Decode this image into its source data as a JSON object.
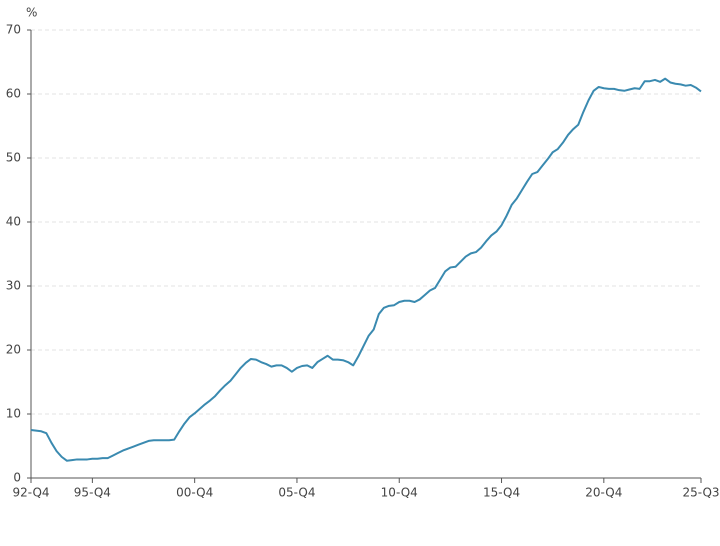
{
  "chart_data": {
    "type": "line",
    "y_label": "%",
    "categories": [
      "92-Q4",
      null,
      null,
      null,
      null,
      null,
      null,
      null,
      null,
      null,
      null,
      null,
      "95-Q4",
      null,
      null,
      null,
      null,
      null,
      null,
      null,
      null,
      null,
      null,
      null,
      null,
      null,
      null,
      null,
      null,
      null,
      null,
      null,
      "00-Q4",
      null,
      null,
      null,
      null,
      null,
      null,
      null,
      null,
      null,
      null,
      null,
      null,
      null,
      null,
      null,
      null,
      null,
      null,
      null,
      "05-Q4",
      null,
      null,
      null,
      null,
      null,
      null,
      null,
      null,
      null,
      null,
      null,
      null,
      null,
      null,
      null,
      null,
      null,
      null,
      null,
      "10-Q4",
      null,
      null,
      null,
      null,
      null,
      null,
      null,
      null,
      null,
      null,
      null,
      null,
      null,
      null,
      null,
      null,
      null,
      null,
      null,
      "15-Q4",
      null,
      null,
      null,
      null,
      null,
      null,
      null,
      null,
      null,
      null,
      null,
      null,
      null,
      null,
      null,
      null,
      null,
      null,
      null,
      "20-Q4",
      null,
      null,
      null,
      null,
      null,
      null,
      null,
      null,
      null,
      null,
      null,
      null,
      null,
      null,
      null,
      null,
      null,
      null,
      "25-Q3"
    ],
    "values": [
      7.5,
      7.4,
      7.3,
      7.0,
      5.5,
      4.2,
      3.3,
      2.7,
      2.8,
      2.9,
      2.9,
      2.9,
      3.0,
      3.0,
      3.1,
      3.1,
      3.5,
      3.9,
      4.3,
      4.6,
      4.9,
      5.2,
      5.5,
      5.8,
      5.9,
      5.9,
      5.9,
      5.9,
      6.0,
      7.3,
      8.5,
      9.5,
      10.1,
      10.8,
      11.5,
      12.1,
      12.8,
      13.7,
      14.5,
      15.2,
      16.2,
      17.2,
      18.0,
      18.6,
      18.5,
      18.1,
      17.8,
      17.4,
      17.6,
      17.6,
      17.2,
      16.6,
      17.2,
      17.5,
      17.6,
      17.2,
      18.1,
      18.6,
      19.1,
      18.5,
      18.5,
      18.4,
      18.1,
      17.6,
      19.0,
      20.6,
      22.2,
      23.2,
      25.6,
      26.6,
      26.9,
      27.0,
      27.5,
      27.7,
      27.7,
      27.5,
      27.9,
      28.6,
      29.3,
      29.7,
      31.0,
      32.3,
      32.9,
      33.0,
      33.8,
      34.6,
      35.1,
      35.3,
      36.0,
      37.0,
      37.9,
      38.5,
      39.5,
      41.0,
      42.7,
      43.7,
      45.0,
      46.3,
      47.5,
      47.8,
      48.8,
      49.8,
      50.9,
      51.4,
      52.4,
      53.6,
      54.5,
      55.2,
      57.2,
      59.0,
      60.5,
      61.1,
      60.9,
      60.8,
      60.8,
      60.6,
      60.5,
      60.7,
      60.9,
      60.8,
      62.0,
      62.0,
      62.2,
      61.9,
      62.4,
      61.8,
      61.6,
      61.5,
      61.3,
      61.4,
      61.0,
      60.4
    ],
    "color": "#3a8ab0",
    "ylim": [
      0,
      70
    ],
    "yticks": [
      0,
      10,
      20,
      30,
      40,
      50,
      60,
      70
    ],
    "grid": true
  }
}
